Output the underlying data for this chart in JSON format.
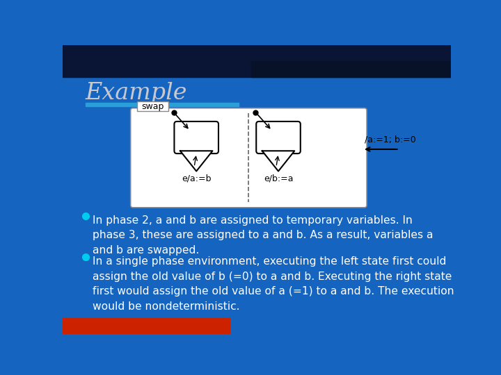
{
  "title": "Example",
  "bg_color": "#1464C0",
  "title_color": "#C8C8D0",
  "title_fontsize": 24,
  "accent_bar_color": "#2AA0D8",
  "bullet_color": "#00CCEE",
  "text_color": "#FFFFFF",
  "text_fontsize": 11.2,
  "bullet1": "In phase 2, a and b are assigned to temporary variables. In\nphase 3, these are assigned to a and b. As a result, variables a\nand b are swapped.",
  "bullet2": "In a single phase environment, executing the left state first could\nassign the old value of b (=0) to a and b. Executing the right state\nfirst would assign the old value of a (=1) to a and b. The execution\nwould be nondeterministic.",
  "diagram_label_swap": "swap",
  "diagram_label_left": "e/a:=b",
  "diagram_label_right": "e/b:=a",
  "diagram_label_init": "/a:=1; b:=0",
  "top_dark_color": "#0A1535",
  "top_dark2_color": "#071228",
  "red_bar_color": "#CC2200"
}
